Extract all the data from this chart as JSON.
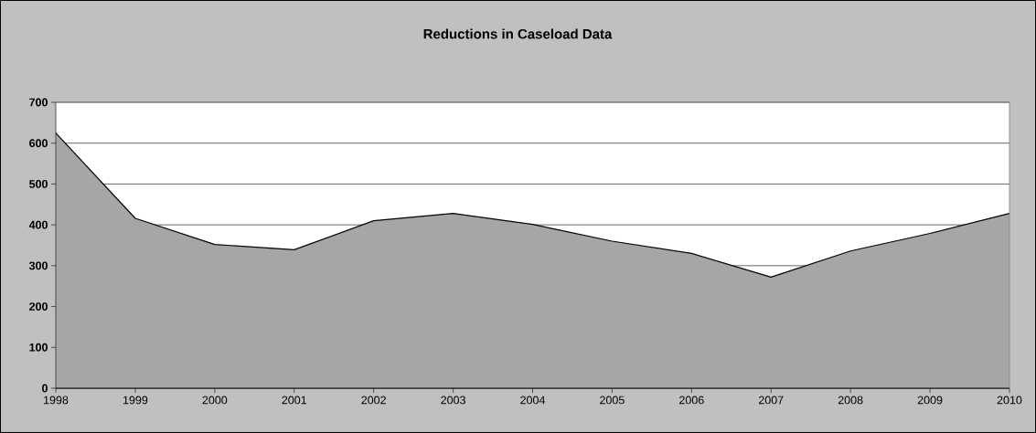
{
  "chart_data": {
    "type": "area",
    "title": "Reductions in Caseload Data",
    "categories": [
      "1998",
      "1999",
      "2000",
      "2001",
      "2002",
      "2003",
      "2004",
      "2005",
      "2006",
      "2007",
      "2008",
      "2009",
      "2010"
    ],
    "values": [
      625,
      416,
      352,
      339,
      410,
      428,
      401,
      360,
      330,
      272,
      336,
      379,
      428
    ],
    "color": "#a6a6a6",
    "ylim": [
      0,
      700
    ],
    "yticks": [
      0,
      100,
      200,
      300,
      400,
      500,
      600,
      700
    ],
    "grid": "y"
  }
}
